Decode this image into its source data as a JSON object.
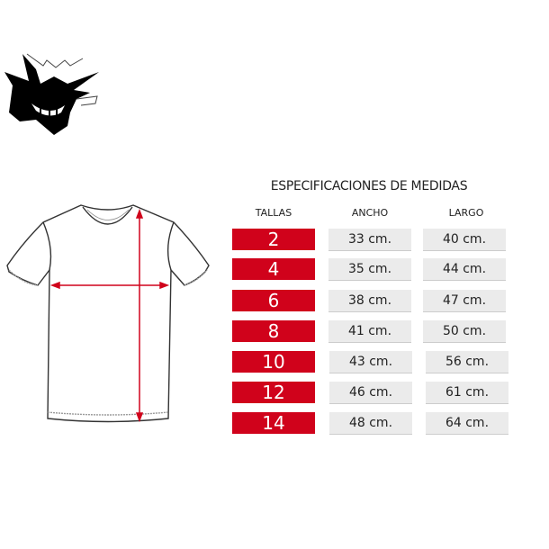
{
  "title": "ESPECIFICACIONES DE MEDIDAS",
  "headers": {
    "size": "TALLAS",
    "width": "ANCHO",
    "length": "LARGO"
  },
  "rows": [
    {
      "size": "2",
      "width": "33 cm.",
      "length": "40 cm."
    },
    {
      "size": "4",
      "width": "35 cm.",
      "length": "44 cm."
    },
    {
      "size": "6",
      "width": "38 cm.",
      "length": "47 cm."
    },
    {
      "size": "8",
      "width": "41 cm.",
      "length": "50 cm."
    },
    {
      "size": "10",
      "width": "43 cm.",
      "length": "56 cm."
    },
    {
      "size": "12",
      "width": "46 cm.",
      "length": "61 cm."
    },
    {
      "size": "14",
      "width": "48 cm.",
      "length": "64 cm."
    }
  ],
  "colors": {
    "accent": "#d0021b",
    "cell": "#ebebeb"
  },
  "icons": {
    "logo": "ghost-silhouette-logo",
    "garment": "t-shirt-diagram"
  }
}
